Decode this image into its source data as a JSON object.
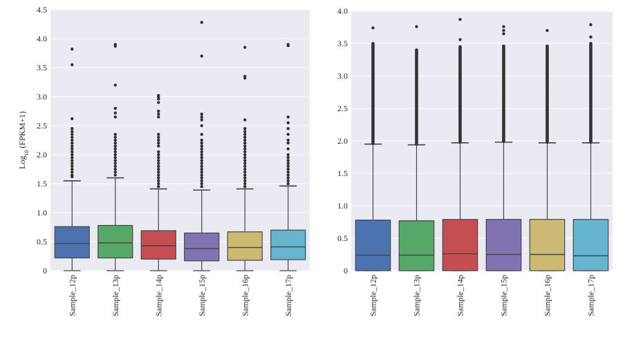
{
  "chart_data": [
    {
      "type": "box",
      "ylabel": "Log10 (FPKM+1)",
      "ylabel_base": "Log",
      "ylabel_sub": "10",
      "ylabel_rest": " (FPKM+1)",
      "ylim": [
        0,
        4.5
      ],
      "yticks": [
        "0",
        "0.5",
        "1.0",
        "1.5",
        "2.0",
        "2.5",
        "3.0",
        "3.5",
        "4.0",
        "4.5"
      ],
      "grid": true,
      "categories": [
        "Sample_12p",
        "Sample_13p",
        "Sample_14p",
        "Sample_15p",
        "Sample_16p",
        "Sample_17p"
      ],
      "colors": [
        "#4C72B0",
        "#55A868",
        "#C44E52",
        "#8172B2",
        "#CCB974",
        "#64B5CD"
      ],
      "boxes": [
        {
          "whisker_low": 0.0,
          "q1": 0.22,
          "median": 0.47,
          "q3": 0.76,
          "whisker_high": 1.55,
          "outliers": [
            1.62,
            1.65,
            1.7,
            1.75,
            1.8,
            1.85,
            1.9,
            1.95,
            2.0,
            2.05,
            2.1,
            2.15,
            2.2,
            2.25,
            2.3,
            2.35,
            2.4,
            2.45,
            2.62,
            3.55,
            3.82
          ]
        },
        {
          "whisker_low": 0.0,
          "q1": 0.22,
          "median": 0.48,
          "q3": 0.78,
          "whisker_high": 1.6,
          "outliers": [
            1.65,
            1.7,
            1.75,
            1.8,
            1.85,
            1.9,
            1.95,
            2.0,
            2.05,
            2.1,
            2.15,
            2.2,
            2.25,
            2.3,
            2.35,
            2.65,
            2.72,
            2.8,
            3.2,
            3.87,
            3.9
          ]
        },
        {
          "whisker_low": 0.0,
          "q1": 0.2,
          "median": 0.43,
          "q3": 0.69,
          "whisker_high": 1.41,
          "outliers": [
            1.45,
            1.5,
            1.55,
            1.6,
            1.65,
            1.7,
            1.75,
            1.8,
            1.85,
            1.9,
            1.95,
            2.0,
            2.05,
            2.15,
            2.2,
            2.25,
            2.3,
            2.35,
            2.65,
            2.7,
            2.75,
            2.9,
            2.96,
            3.0,
            3.02
          ]
        },
        {
          "whisker_low": 0.0,
          "q1": 0.17,
          "median": 0.38,
          "q3": 0.65,
          "whisker_high": 1.39,
          "outliers": [
            1.45,
            1.5,
            1.55,
            1.6,
            1.65,
            1.7,
            1.75,
            1.8,
            1.85,
            1.9,
            1.95,
            2.0,
            2.05,
            2.1,
            2.15,
            2.2,
            2.25,
            2.35,
            2.5,
            2.6,
            2.65,
            2.7,
            3.7,
            4.28
          ]
        },
        {
          "whisker_low": 0.0,
          "q1": 0.18,
          "median": 0.4,
          "q3": 0.67,
          "whisker_high": 1.41,
          "outliers": [
            1.45,
            1.5,
            1.55,
            1.6,
            1.65,
            1.7,
            1.75,
            1.8,
            1.85,
            1.9,
            1.95,
            2.0,
            2.05,
            2.1,
            2.15,
            2.2,
            2.25,
            2.3,
            2.35,
            2.4,
            2.45,
            2.6,
            3.32,
            3.35,
            3.85
          ]
        },
        {
          "whisker_low": 0.0,
          "q1": 0.19,
          "median": 0.41,
          "q3": 0.7,
          "whisker_high": 1.46,
          "outliers": [
            1.5,
            1.55,
            1.6,
            1.65,
            1.7,
            1.75,
            1.8,
            1.85,
            1.9,
            1.95,
            2.0,
            2.1,
            2.2,
            2.25,
            2.35,
            2.45,
            2.55,
            2.65,
            3.88,
            3.9
          ]
        }
      ]
    },
    {
      "type": "box",
      "ylabel": "",
      "ylim": [
        0,
        4.0
      ],
      "yticks": [
        "0",
        "0.5",
        "1.0",
        "1.5",
        "2.0",
        "2.5",
        "3.0",
        "3.5",
        "4.0"
      ],
      "grid": true,
      "categories": [
        "Sample_12p",
        "Sample_13p",
        "Sample_14p",
        "Sample_15p",
        "Sample_16p",
        "Sample_17p"
      ],
      "colors": [
        "#4C72B0",
        "#55A868",
        "#C44E52",
        "#8172B2",
        "#CCB974",
        "#64B5CD"
      ],
      "boxes": [
        {
          "whisker_low": 0.0,
          "q1": 0.0,
          "median": 0.24,
          "q3": 0.78,
          "whisker_high": 1.95,
          "outlier_band": [
            1.96,
            3.5
          ],
          "outliers": [
            3.74
          ]
        },
        {
          "whisker_low": 0.0,
          "q1": 0.0,
          "median": 0.24,
          "q3": 0.77,
          "whisker_high": 1.94,
          "outlier_band": [
            1.95,
            3.4
          ],
          "outliers": [
            3.76
          ]
        },
        {
          "whisker_low": 0.0,
          "q1": 0.0,
          "median": 0.26,
          "q3": 0.79,
          "whisker_high": 1.97,
          "outlier_band": [
            1.98,
            3.45
          ],
          "outliers": [
            3.56,
            3.87
          ]
        },
        {
          "whisker_low": 0.0,
          "q1": 0.0,
          "median": 0.25,
          "q3": 0.79,
          "whisker_high": 1.98,
          "outlier_band": [
            1.99,
            3.46
          ],
          "outliers": [
            3.65,
            3.7,
            3.76
          ]
        },
        {
          "whisker_low": 0.0,
          "q1": 0.0,
          "median": 0.25,
          "q3": 0.79,
          "whisker_high": 1.97,
          "outlier_band": [
            1.98,
            3.46
          ],
          "outliers": [
            3.7
          ]
        },
        {
          "whisker_low": 0.0,
          "q1": 0.0,
          "median": 0.23,
          "q3": 0.79,
          "whisker_high": 1.97,
          "outlier_band": [
            1.98,
            3.5
          ],
          "outliers": [
            3.6,
            3.79
          ]
        }
      ]
    }
  ]
}
